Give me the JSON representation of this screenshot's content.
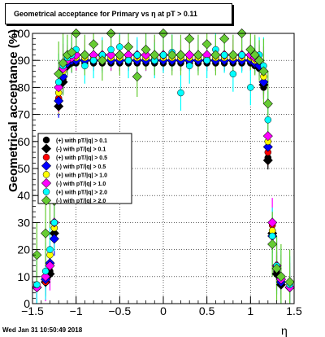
{
  "page": {
    "timestamp": "Wed Jan 31 10:50:49 2018"
  },
  "chart_data": {
    "type": "scatter",
    "title": "Geometrical acceptance for Primary vs    η at pT  > 0.11",
    "xlabel": "η",
    "ylabel": "Geometrical acceptance (%)",
    "xlim": [
      -1.5,
      1.5
    ],
    "ylim": [
      0,
      100
    ],
    "x_ticks": [
      -1.5,
      -1,
      -0.5,
      0,
      0.5,
      1,
      1.5
    ],
    "x_tick_labels": [
      "−1.5",
      "−1",
      "−0.5",
      "0",
      "0.5",
      "1",
      "1.5"
    ],
    "y_ticks": [
      0,
      10,
      20,
      30,
      40,
      50,
      60,
      70,
      80,
      90,
      100
    ],
    "y_tick_labels": [
      "0",
      "10",
      "20",
      "30",
      "40",
      "50",
      "60",
      "70",
      "80",
      "90",
      "100"
    ],
    "grid": true,
    "legend_position": "middle-left",
    "series": [
      {
        "name": "(+) with pT/|q| > 0.1",
        "color": "#000000",
        "x": [
          -1.45,
          -1.35,
          -1.3,
          -1.25,
          -1.2,
          -1.15,
          -1.1,
          -1.05,
          -1.0,
          -0.9,
          -0.8,
          -0.7,
          -0.6,
          -0.5,
          -0.4,
          -0.3,
          -0.2,
          -0.1,
          0.0,
          0.1,
          0.2,
          0.3,
          0.4,
          0.5,
          0.6,
          0.7,
          0.8,
          0.9,
          1.0,
          1.05,
          1.1,
          1.15,
          1.2,
          1.25,
          1.3,
          1.35,
          1.45
        ],
        "y": [
          6,
          8,
          12,
          28,
          75,
          83,
          88,
          89,
          89,
          89,
          89,
          89,
          89,
          89,
          89,
          89,
          89,
          89,
          89,
          89,
          89,
          89,
          89,
          89,
          89,
          89,
          89,
          89,
          89,
          88,
          87,
          80,
          54,
          27,
          12,
          8,
          6
        ]
      },
      {
        "name": "(-) with pT/|q| > 0.1",
        "color": "#000000",
        "x": [
          -1.45,
          -1.35,
          -1.3,
          -1.25,
          -1.2,
          -1.15,
          -1.1,
          -1.05,
          -1.0,
          -0.9,
          -0.8,
          -0.7,
          -0.6,
          -0.5,
          -0.4,
          -0.3,
          -0.2,
          -0.1,
          0.0,
          0.1,
          0.2,
          0.3,
          0.4,
          0.5,
          0.6,
          0.7,
          0.8,
          0.9,
          1.0,
          1.05,
          1.1,
          1.15,
          1.2,
          1.25,
          1.3,
          1.35,
          1.45
        ],
        "y": [
          6,
          8,
          11,
          26,
          73,
          82,
          88,
          90,
          90,
          90,
          90,
          90,
          90,
          90,
          90,
          90,
          90,
          90,
          90,
          90,
          90,
          90,
          90,
          90,
          90,
          90,
          90,
          90,
          90,
          89,
          88,
          81,
          53,
          26,
          11,
          7,
          6
        ]
      },
      {
        "name": "(+) with pT/|q| > 0.5",
        "color": "#ff0000",
        "x": [
          -1.45,
          -1.35,
          -1.3,
          -1.25,
          -1.2,
          -1.15,
          -1.1,
          -1.05,
          -1.0,
          -0.9,
          -0.8,
          -0.7,
          -0.6,
          -0.5,
          -0.4,
          -0.3,
          -0.2,
          -0.1,
          0.0,
          0.1,
          0.2,
          0.3,
          0.4,
          0.5,
          0.6,
          0.7,
          0.8,
          0.9,
          1.0,
          1.05,
          1.1,
          1.15,
          1.2,
          1.25,
          1.3,
          1.35,
          1.45
        ],
        "y": [
          6,
          8,
          14,
          30,
          76,
          84,
          89,
          90,
          90,
          90,
          90,
          90,
          90,
          90,
          90,
          90,
          90,
          90,
          90,
          90,
          90,
          90,
          90,
          90,
          90,
          90,
          90,
          90,
          90,
          89,
          88,
          82,
          56,
          29,
          13,
          8,
          6
        ]
      },
      {
        "name": "(-) with pT/|q| > 0.5",
        "color": "#0000ff",
        "x": [
          -1.45,
          -1.35,
          -1.3,
          -1.25,
          -1.2,
          -1.15,
          -1.1,
          -1.05,
          -1.0,
          -0.9,
          -0.8,
          -0.7,
          -0.6,
          -0.5,
          -0.4,
          -0.3,
          -0.2,
          -0.1,
          0.0,
          0.1,
          0.2,
          0.3,
          0.4,
          0.5,
          0.6,
          0.7,
          0.8,
          0.9,
          1.0,
          1.05,
          1.1,
          1.15,
          1.2,
          1.25,
          1.3,
          1.35,
          1.45
        ],
        "y": [
          6,
          9,
          15,
          24,
          75,
          84,
          89,
          90,
          90,
          90,
          90,
          90,
          90,
          90,
          90,
          90,
          90,
          90,
          90,
          90,
          90,
          90,
          90,
          90,
          90,
          90,
          90,
          90,
          90,
          89,
          88,
          82,
          58,
          25,
          13,
          8,
          6
        ]
      },
      {
        "name": "(+) with pT/|q| > 1.0",
        "color": "#ffff00",
        "x": [
          -1.45,
          -1.35,
          -1.3,
          -1.25,
          -1.2,
          -1.15,
          -1.1,
          -1.05,
          -1.0,
          -0.9,
          -0.8,
          -0.7,
          -0.6,
          -0.5,
          -0.4,
          -0.3,
          -0.2,
          -0.1,
          0.0,
          0.1,
          0.2,
          0.3,
          0.4,
          0.5,
          0.6,
          0.7,
          0.8,
          0.9,
          1.0,
          1.05,
          1.1,
          1.15,
          1.2,
          1.25,
          1.3,
          1.35,
          1.45
        ],
        "y": [
          7,
          10,
          18,
          28,
          78,
          86,
          90,
          91,
          91,
          91,
          91,
          91,
          91,
          91,
          91,
          91,
          91,
          91,
          91,
          91,
          91,
          91,
          91,
          91,
          91,
          91,
          91,
          91,
          91,
          90,
          90,
          84,
          60,
          27,
          14,
          9,
          6
        ]
      },
      {
        "name": "(-) with pT/|q| > 1.0",
        "color": "#ff00ff",
        "x": [
          -1.45,
          -1.35,
          -1.3,
          -1.25,
          -1.2,
          -1.15,
          -1.1,
          -1.05,
          -1.0,
          -0.9,
          -0.8,
          -0.7,
          -0.6,
          -0.5,
          -0.4,
          -0.3,
          -0.2,
          -0.1,
          0.0,
          0.1,
          0.2,
          0.3,
          0.4,
          0.5,
          0.6,
          0.7,
          0.8,
          0.9,
          1.0,
          1.05,
          1.1,
          1.15,
          1.2,
          1.25,
          1.3,
          1.35,
          1.45
        ],
        "y": [
          6,
          10,
          14,
          30,
          80,
          87,
          90,
          91,
          92,
          92,
          92,
          92,
          92,
          92,
          92,
          92,
          92,
          92,
          92,
          92,
          92,
          92,
          92,
          92,
          92,
          92,
          92,
          92,
          92,
          91,
          90,
          86,
          62,
          30,
          14,
          9,
          6
        ]
      },
      {
        "name": "(+) with pT/|q| > 2.0",
        "color": "#00ffff",
        "x": [
          -1.45,
          -1.35,
          -1.3,
          -1.25,
          -1.2,
          -1.15,
          -1.1,
          -1.05,
          -1.0,
          -0.9,
          -0.8,
          -0.7,
          -0.6,
          -0.5,
          -0.4,
          -0.3,
          -0.2,
          -0.1,
          0.0,
          0.1,
          0.2,
          0.3,
          0.4,
          0.5,
          0.6,
          0.7,
          0.8,
          0.9,
          1.0,
          1.05,
          1.1,
          1.15,
          1.2,
          1.25,
          1.3,
          1.35,
          1.45
        ],
        "y": [
          7,
          12,
          20,
          30,
          82,
          88,
          91,
          92,
          94,
          88,
          90,
          92,
          94,
          95,
          90,
          92,
          94,
          90,
          92,
          93,
          78,
          88,
          92,
          90,
          94,
          92,
          85,
          92,
          80,
          92,
          92,
          88,
          68,
          25,
          14,
          10,
          7
        ]
      },
      {
        "name": "(-) with pT/|q| > 2.0",
        "color": "#66cc33",
        "x": [
          -1.45,
          -1.35,
          -1.3,
          -1.25,
          -1.2,
          -1.15,
          -1.1,
          -1.05,
          -1.0,
          -0.9,
          -0.8,
          -0.7,
          -0.6,
          -0.5,
          -0.4,
          -0.3,
          -0.2,
          -0.1,
          0.0,
          0.1,
          0.2,
          0.3,
          0.4,
          0.5,
          0.6,
          0.7,
          0.8,
          0.9,
          1.0,
          1.05,
          1.1,
          1.15,
          1.2,
          1.25,
          1.3,
          1.35,
          1.45
        ],
        "y": [
          18,
          26,
          40,
          38,
          85,
          89,
          92,
          93,
          100,
          92,
          96,
          90,
          100,
          92,
          95,
          84,
          94,
          92,
          100,
          92,
          92,
          98,
          92,
          96,
          92,
          98,
          92,
          100,
          94,
          92,
          90,
          86,
          74,
          22,
          13,
          10,
          8
        ]
      }
    ]
  }
}
